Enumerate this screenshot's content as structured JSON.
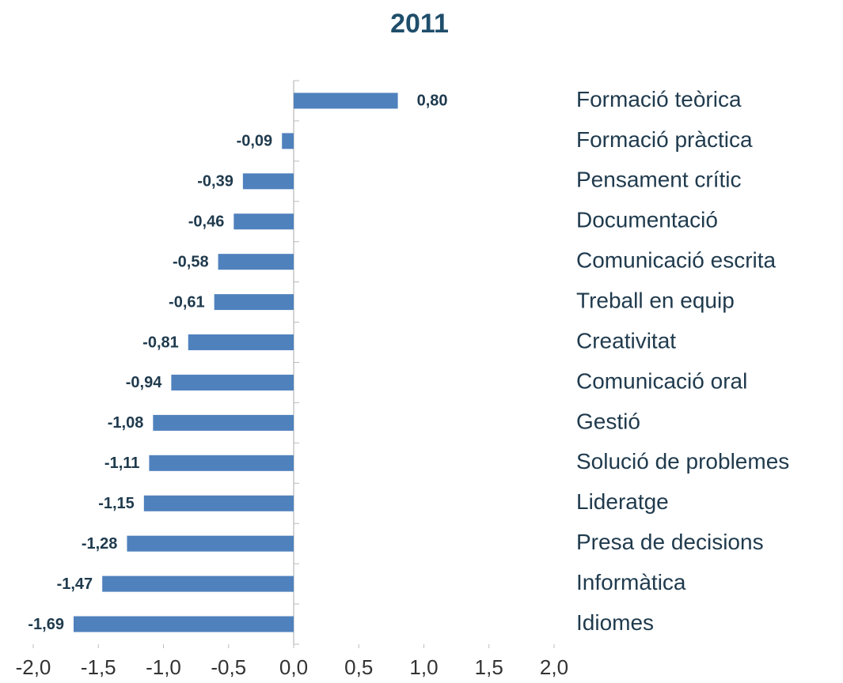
{
  "chart_data": {
    "type": "barh",
    "title": "2011",
    "categories": [
      "Formació teòrica",
      "Formació pràctica",
      "Pensament crític",
      "Documentació",
      "Comunicació escrita",
      "Treball en equip",
      "Creativitat",
      "Comunicació oral",
      "Gestió",
      "Solució de problemes",
      "Lideratge",
      "Presa de decisions",
      "Informàtica",
      "Idiomes"
    ],
    "values": [
      0.8,
      -0.09,
      -0.39,
      -0.46,
      -0.58,
      -0.61,
      -0.81,
      -0.94,
      -1.08,
      -1.11,
      -1.15,
      -1.28,
      -1.47,
      -1.69
    ],
    "value_labels": [
      "0,80",
      "-0,09",
      "-0,39",
      "-0,46",
      "-0,58",
      "-0,61",
      "-0,81",
      "-0,94",
      "-1,08",
      "-1,11",
      "-1,15",
      "-1,28",
      "-1,47",
      "-1,69"
    ],
    "color": "#4f81bd",
    "xlim": [
      -2,
      2
    ],
    "xticks": [
      {
        "value": -2,
        "label": "-2,0"
      },
      {
        "value": -1.5,
        "label": "-1,5"
      },
      {
        "value": -1,
        "label": "-1,0"
      },
      {
        "value": -0.5,
        "label": "-0,5"
      },
      {
        "value": 0,
        "label": "0,0"
      },
      {
        "value": 0.5,
        "label": "0,5"
      },
      {
        "value": 1,
        "label": "1,0"
      },
      {
        "value": 1.5,
        "label": "1,5"
      },
      {
        "value": 2,
        "label": "2,0"
      }
    ],
    "grid": false
  }
}
